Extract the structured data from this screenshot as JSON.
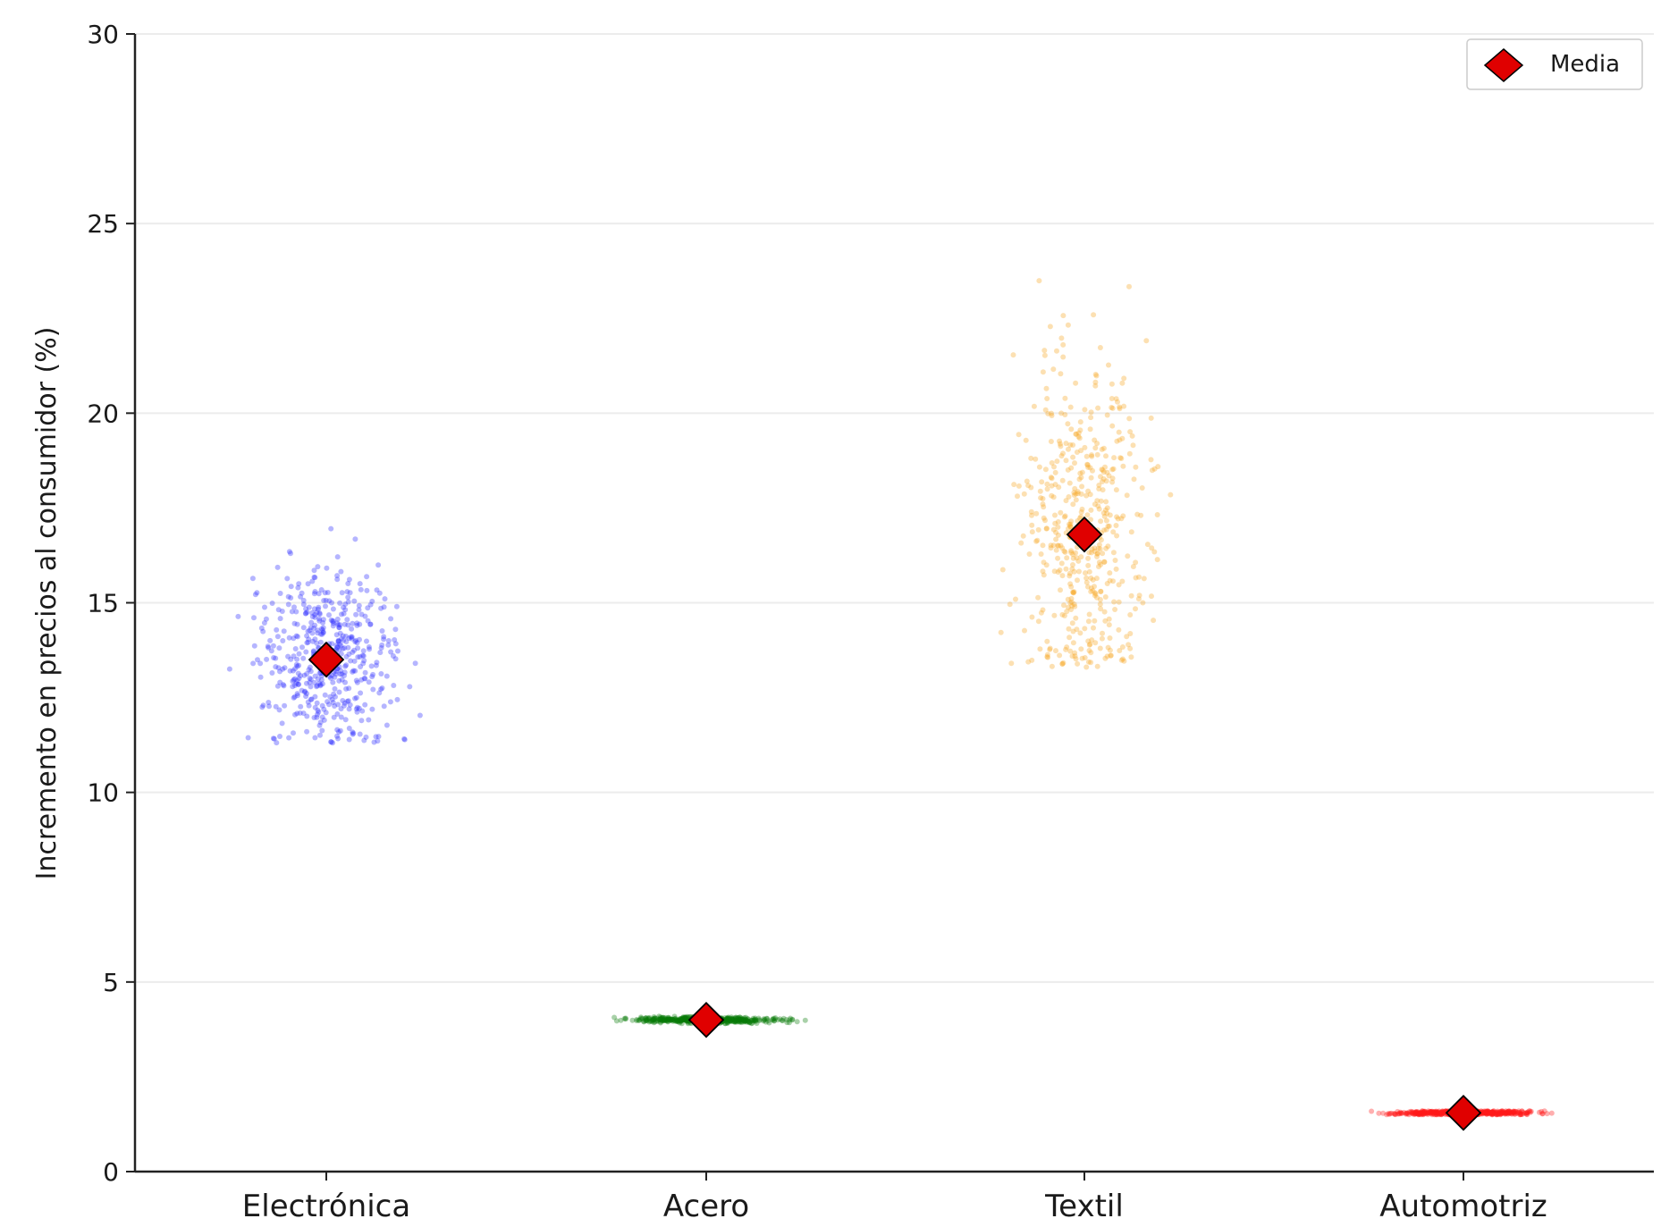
{
  "chart_data": {
    "type": "scatter",
    "title": "",
    "xlabel": "",
    "ylabel": "Incremento en precios al consumidor (%)",
    "categories": [
      "Electrónica",
      "Acero",
      "Textil",
      "Automotriz"
    ],
    "ylim": [
      0,
      30
    ],
    "yticks": [
      0,
      5,
      10,
      15,
      20,
      25,
      30
    ],
    "grid": "horizontal",
    "legend": {
      "placement": "top-right",
      "entries": [
        "Media"
      ]
    },
    "series": [
      {
        "category": "Electrónica",
        "color": "#2b2bff",
        "mean": 13.5,
        "min": 11.3,
        "max": 17.0,
        "spread": 1.2,
        "n": 500
      },
      {
        "category": "Acero",
        "color": "#0a7a0a",
        "mean": 4.0,
        "min": 3.9,
        "max": 4.1,
        "spread": 0.04,
        "n": 500
      },
      {
        "category": "Textil",
        "color": "#f5a623",
        "mean": 16.8,
        "min": 13.3,
        "max": 25.7,
        "spread": 2.3,
        "n": 500
      },
      {
        "category": "Automotriz",
        "color": "#ff1a1a",
        "mean": 1.55,
        "min": 1.5,
        "max": 1.6,
        "spread": 0.03,
        "n": 500
      }
    ],
    "mean_marker": {
      "label": "Media",
      "shape": "diamond",
      "fill": "#e00000",
      "edge": "#000000"
    }
  }
}
